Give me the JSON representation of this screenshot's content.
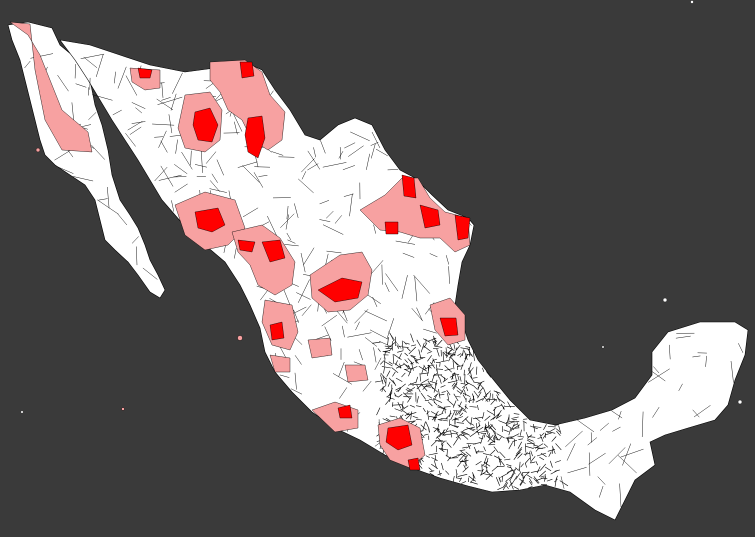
{
  "map": {
    "colors": {
      "background": "#3a3a3a",
      "land": "#ffffff",
      "border": "#000000",
      "highlight_strong": "#ff0000",
      "highlight_light": "#f7a1a1"
    },
    "legend": [],
    "labels": []
  }
}
